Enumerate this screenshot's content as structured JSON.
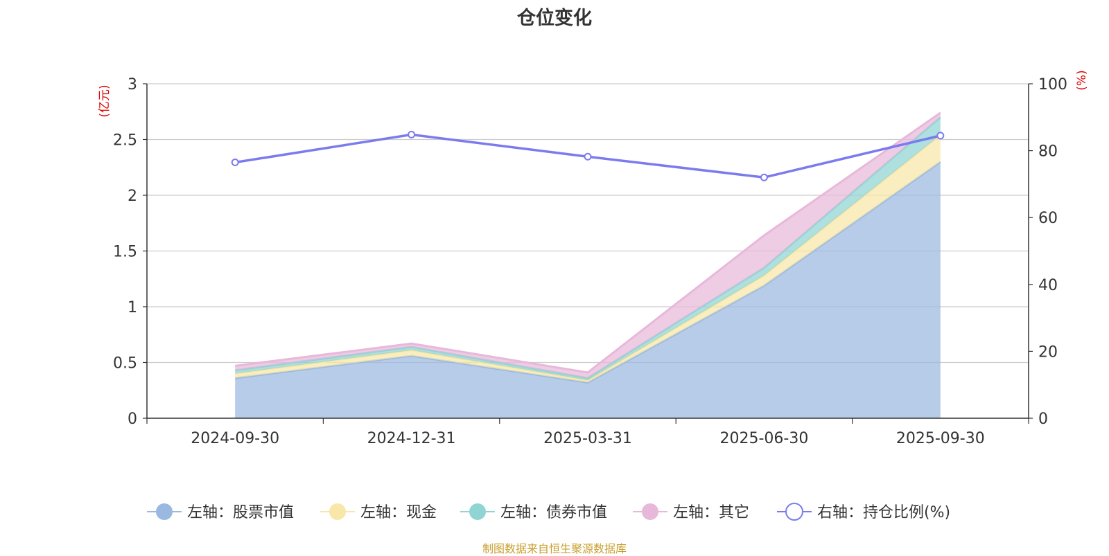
{
  "chart_data": {
    "type": "area",
    "title": "仓位变化",
    "source_note": "制图数据来自恒生聚源数据库",
    "categories": [
      "2024-09-30",
      "2024-12-31",
      "2025-03-31",
      "2025-06-30",
      "2025-09-30"
    ],
    "left_axis": {
      "unit": "(亿元)",
      "range": [
        0,
        3
      ],
      "ticks": [
        "0",
        "0.5",
        "1",
        "1.5",
        "2",
        "2.5",
        "3"
      ],
      "stacked": true
    },
    "right_axis": {
      "unit": "(%)",
      "range": [
        0,
        100
      ],
      "ticks": [
        "0",
        "20",
        "40",
        "60",
        "80",
        "100"
      ]
    },
    "series": [
      {
        "name": "左轴：股票市值",
        "axis": "left",
        "kind": "area",
        "color": "#9ab8e0",
        "values": [
          0.36,
          0.56,
          0.32,
          1.19,
          2.3
        ]
      },
      {
        "name": "左轴：现金",
        "axis": "left",
        "kind": "area",
        "color": "#f8e7a8",
        "values": [
          0.04,
          0.05,
          0.02,
          0.09,
          0.24
        ]
      },
      {
        "name": "左轴：债券市值",
        "axis": "left",
        "kind": "area",
        "color": "#90d4d4",
        "values": [
          0.03,
          0.03,
          0.02,
          0.07,
          0.16
        ]
      },
      {
        "name": "左轴：其它",
        "axis": "left",
        "kind": "area",
        "color": "#e8b8da",
        "values": [
          0.04,
          0.03,
          0.05,
          0.29,
          0.04
        ]
      },
      {
        "name": "右轴：持仓比例(%)",
        "axis": "right",
        "kind": "line",
        "color": "#7b7bef",
        "values": [
          76.5,
          84.8,
          78.2,
          72.0,
          84.5
        ]
      }
    ],
    "grid": true,
    "legend_position": "bottom"
  }
}
